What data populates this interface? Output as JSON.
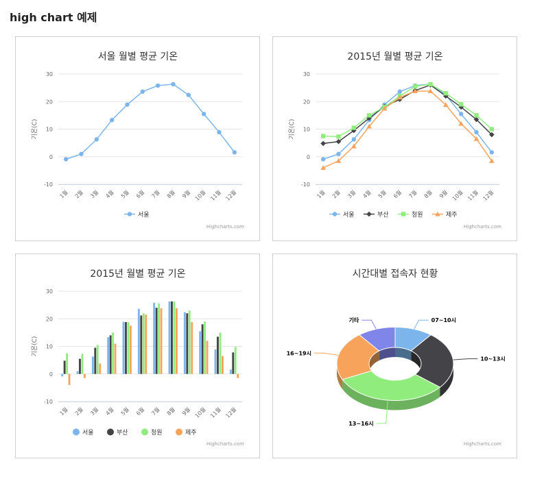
{
  "page": {
    "title": "high chart 예제"
  },
  "credits": "Highcharts.com",
  "colors": {
    "서울": "#7cb5ec",
    "부산": "#434348",
    "청원": "#90ed7d",
    "제주": "#f7a35c",
    "기타": "#8085e9"
  },
  "chart_data": [
    {
      "type": "line",
      "title": "서울 월별 평균 기온",
      "ylabel": "기온(C)",
      "categories": [
        "1월",
        "2월",
        "3월",
        "4월",
        "5월",
        "6월",
        "7월",
        "8월",
        "9월",
        "10월",
        "11월",
        "12월"
      ],
      "ylim": [
        -10,
        30
      ],
      "yticks": [
        "-10",
        "0",
        "10",
        "20",
        "30"
      ],
      "series": [
        {
          "name": "서울",
          "values": [
            -0.9,
            1.0,
            6.3,
            13.3,
            18.9,
            23.6,
            25.8,
            26.3,
            22.4,
            15.5,
            8.9,
            1.6
          ]
        }
      ]
    },
    {
      "type": "line",
      "title": "2015년 월별 평균 기온",
      "ylabel": "기온(C)",
      "categories": [
        "1월",
        "2월",
        "3월",
        "4월",
        "5월",
        "6월",
        "7월",
        "8월",
        "9월",
        "10월",
        "11월",
        "12월"
      ],
      "ylim": [
        -10,
        30
      ],
      "yticks": [
        "-10",
        "0",
        "10",
        "20",
        "30"
      ],
      "series": [
        {
          "name": "서울",
          "values": [
            -0.9,
            1.0,
            6.3,
            13.3,
            18.9,
            23.6,
            25.8,
            26.3,
            22.4,
            15.5,
            8.9,
            1.6
          ]
        },
        {
          "name": "부산",
          "values": [
            4.8,
            5.5,
            9.5,
            14.0,
            18.2,
            20.8,
            24.0,
            26.0,
            22.0,
            18.0,
            13.5,
            8.0
          ]
        },
        {
          "name": "청원",
          "values": [
            7.5,
            7.3,
            10.5,
            15.0,
            18.0,
            22.0,
            25.5,
            26.3,
            23.0,
            19.0,
            15.0,
            10.0
          ]
        },
        {
          "name": "제주",
          "values": [
            -4.0,
            -1.5,
            3.8,
            11.0,
            17.5,
            21.5,
            23.8,
            23.8,
            18.8,
            12.0,
            6.5,
            -1.5
          ]
        }
      ]
    },
    {
      "type": "bar",
      "title": "2015년 월별 평균 기온",
      "ylabel": "기온(C)",
      "categories": [
        "1월",
        "2월",
        "3월",
        "4월",
        "5월",
        "6월",
        "7월",
        "8월",
        "9월",
        "10월",
        "11월",
        "12월"
      ],
      "ylim": [
        -10,
        30
      ],
      "yticks": [
        "-10",
        "0",
        "10",
        "20",
        "30"
      ],
      "series": [
        {
          "name": "서울",
          "values": [
            -0.9,
            1.0,
            6.3,
            13.3,
            18.9,
            23.6,
            25.8,
            26.3,
            22.4,
            15.5,
            8.9,
            1.6
          ]
        },
        {
          "name": "부산",
          "values": [
            4.8,
            5.5,
            9.5,
            14.0,
            18.8,
            21.2,
            24.0,
            26.3,
            22.0,
            18.0,
            13.5,
            7.8
          ]
        },
        {
          "name": "청원",
          "values": [
            7.5,
            7.3,
            10.5,
            15.0,
            18.8,
            22.0,
            25.5,
            26.3,
            23.0,
            19.0,
            15.0,
            9.8
          ]
        },
        {
          "name": "제주",
          "values": [
            -4.0,
            -1.5,
            3.8,
            11.0,
            17.5,
            21.5,
            23.8,
            23.8,
            18.8,
            12.0,
            6.5,
            -1.5
          ]
        }
      ]
    },
    {
      "type": "pie",
      "title": "시간대별 접속자 현황",
      "slices": [
        {
          "name": "07~10시",
          "value": 10.5,
          "color": "#7cb5ec"
        },
        {
          "name": "10~13시",
          "value": 25.5,
          "color": "#434348"
        },
        {
          "name": "13~16시",
          "value": 32.0,
          "color": "#90ed7d"
        },
        {
          "name": "16~19시",
          "value": 21.5,
          "color": "#f7a35c"
        },
        {
          "name": "기타",
          "value": 10.5,
          "color": "#8085e9"
        }
      ]
    }
  ]
}
